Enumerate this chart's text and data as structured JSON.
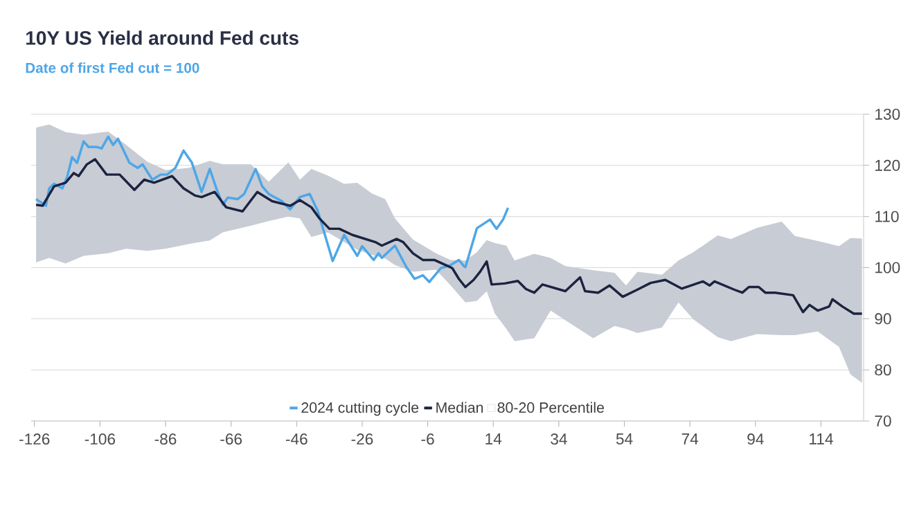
{
  "chart_data": {
    "type": "line",
    "title": "10Y US Yield around Fed cuts",
    "subtitle": "Date of first Fed cut = 100",
    "xlim": [
      -127,
      127
    ],
    "xticks": [
      -126,
      -106,
      -86,
      -66,
      -46,
      -26,
      -6,
      14,
      34,
      54,
      74,
      94,
      114
    ],
    "ylim": [
      70,
      130
    ],
    "yticks": [
      70,
      80,
      90,
      100,
      110,
      120,
      130
    ],
    "grid": "y",
    "legend": "bottom",
    "series": [
      {
        "name": "2024 cutting cycle",
        "color": "#4da6e8",
        "x": [
          -125.5,
          -122.5,
          -121.5,
          -120,
          -117.5,
          -116,
          -114.5,
          -113,
          -111,
          -109.5,
          -107,
          -105.5,
          -103.5,
          -102,
          -100.5,
          -97,
          -94.5,
          -93,
          -90,
          -87.5,
          -85.5,
          -83,
          -80.5,
          -78,
          -75,
          -72.5,
          -70.5,
          -68.5,
          -67,
          -64,
          -62,
          -58.5,
          -56.5,
          -54.5,
          -50.5,
          -48,
          -45,
          -42,
          -39.5,
          -35,
          -31.5,
          -27.5,
          -26,
          -22.5,
          -21,
          -20,
          -16,
          -12.5,
          -10,
          -7.5,
          -5.5,
          -2,
          1,
          3.5,
          5,
          5.5,
          9,
          13,
          15,
          17,
          18.5
        ],
        "values": [
          113.4,
          112.1,
          115.5,
          116.4,
          115.5,
          117.8,
          121.6,
          120.5,
          124.7,
          123.6,
          123.6,
          123.3,
          125.6,
          124.0,
          125.2,
          120.5,
          119.5,
          120.2,
          117.2,
          118.2,
          118.2,
          119.5,
          122.9,
          120.6,
          114.8,
          119.3,
          115.5,
          112.3,
          113.7,
          113.4,
          114.4,
          119.3,
          115.9,
          114.4,
          113.0,
          111.4,
          113.8,
          114.4,
          111.0,
          101.3,
          106.4,
          102.3,
          104.2,
          101.5,
          102.8,
          101.9,
          104.3,
          100.1,
          97.8,
          98.5,
          97.2,
          99.9,
          100.5,
          101.5,
          100.3,
          100.1,
          107.7,
          109.4,
          107.6,
          109.4,
          111.7
        ]
      },
      {
        "name": "Median",
        "color": "#1c2340",
        "x": [
          -125.5,
          -123.5,
          -120,
          -116.5,
          -114,
          -112.5,
          -110,
          -107.5,
          -104,
          -100,
          -95.5,
          -92.5,
          -89.5,
          -84,
          -80.5,
          -77,
          -75,
          -71,
          -67.5,
          -62.5,
          -58,
          -53.5,
          -48,
          -45,
          -41.5,
          -39,
          -36,
          -33,
          -29,
          -25.5,
          -22,
          -20,
          -15.5,
          -13.5,
          -10.5,
          -7.5,
          -4,
          -0.5,
          1.5,
          3.5,
          5.5,
          8,
          10,
          12,
          13.5,
          17.5,
          21.5,
          24,
          26.5,
          29,
          36,
          40.5,
          42,
          46,
          49.5,
          53.5,
          58,
          62,
          66.5,
          71.5,
          78,
          80,
          81.5,
          87.5,
          90,
          92,
          95,
          97,
          100,
          105.5,
          108.5,
          110.5,
          113,
          116.5,
          117.5,
          120.5,
          124,
          126.5
        ],
        "values": [
          112.3,
          112.1,
          115.9,
          116.6,
          118.5,
          117.9,
          120.2,
          121.2,
          118.2,
          118.2,
          115.2,
          117.2,
          116.6,
          117.9,
          115.5,
          114.1,
          113.8,
          114.8,
          111.8,
          111.0,
          114.8,
          113.0,
          112.1,
          113.2,
          111.8,
          109.6,
          107.6,
          107.6,
          106.4,
          105.7,
          105.0,
          104.3,
          105.6,
          105.0,
          102.8,
          101.5,
          101.5,
          100.5,
          99.9,
          97.8,
          96.2,
          97.6,
          99.2,
          101.2,
          96.7,
          96.9,
          97.4,
          95.8,
          95.1,
          96.7,
          95.4,
          98.1,
          95.4,
          95.1,
          96.5,
          94.3,
          95.7,
          97.0,
          97.6,
          95.9,
          97.3,
          96.5,
          97.3,
          95.7,
          95.1,
          96.2,
          96.2,
          95.1,
          95.1,
          94.6,
          91.3,
          92.7,
          91.6,
          92.4,
          93.8,
          92.4,
          91.0,
          91.0
        ]
      },
      {
        "name": "80-20 Percentile",
        "type": "area",
        "color": "#c8ccd4",
        "x": [
          -125.5,
          -121.5,
          -116.5,
          -111,
          -103.5,
          -98,
          -91.5,
          -86,
          -79,
          -72.5,
          -68.5,
          -60,
          -54.5,
          -48.5,
          -45,
          -41.5,
          -36.5,
          -31.5,
          -27.5,
          -23,
          -19,
          -16,
          -10.5,
          -3.5,
          1,
          5.5,
          9,
          12,
          14.5,
          18,
          20.5,
          26.5,
          31.5,
          36,
          44.5,
          51,
          54.5,
          58,
          65.5,
          70.5,
          75,
          82.5,
          86.5,
          94.5,
          102,
          106,
          113,
          119.5,
          123,
          126.5
        ],
        "values": [
          null,
          null,
          null,
          null,
          null,
          null,
          null,
          null,
          null,
          null,
          null,
          null,
          null,
          null,
          null,
          null,
          null,
          null,
          null,
          null,
          null,
          null,
          null,
          null,
          null,
          null,
          null,
          null,
          null,
          null,
          null,
          null,
          null,
          null,
          null,
          null,
          null,
          null,
          null,
          null,
          null,
          null,
          null,
          null,
          null,
          null,
          null,
          null,
          null,
          null
        ],
        "upper": [
          127.4,
          128.0,
          126.5,
          126.0,
          126.6,
          124.0,
          120.7,
          119.1,
          119.5,
          120.9,
          120.2,
          120.2,
          116.8,
          120.6,
          117.2,
          119.3,
          118.0,
          116.4,
          116.6,
          114.5,
          113.4,
          109.6,
          105.5,
          102.8,
          101.5,
          101.4,
          103.0,
          105.4,
          104.8,
          104.3,
          101.4,
          102.7,
          101.9,
          100.3,
          99.5,
          99.0,
          96.5,
          99.2,
          98.6,
          101.4,
          103.0,
          106.3,
          105.6,
          107.8,
          109.0,
          106.2,
          105.2,
          104.2,
          105.8,
          105.7
        ],
        "lower": [
          101.0,
          101.9,
          100.8,
          102.3,
          102.8,
          103.7,
          103.3,
          103.7,
          104.6,
          105.3,
          106.9,
          108.2,
          109.1,
          110.0,
          109.6,
          106.0,
          106.9,
          105.0,
          103.5,
          102.5,
          101.8,
          100.5,
          99.2,
          99.6,
          96.5,
          93.2,
          93.5,
          95.4,
          91.0,
          88.0,
          85.6,
          86.2,
          91.6,
          89.7,
          86.2,
          88.6,
          88.0,
          87.2,
          88.3,
          93.2,
          89.9,
          86.4,
          85.6,
          87.0,
          86.8,
          86.8,
          87.5,
          84.5,
          79.1,
          77.5
        ]
      }
    ]
  }
}
